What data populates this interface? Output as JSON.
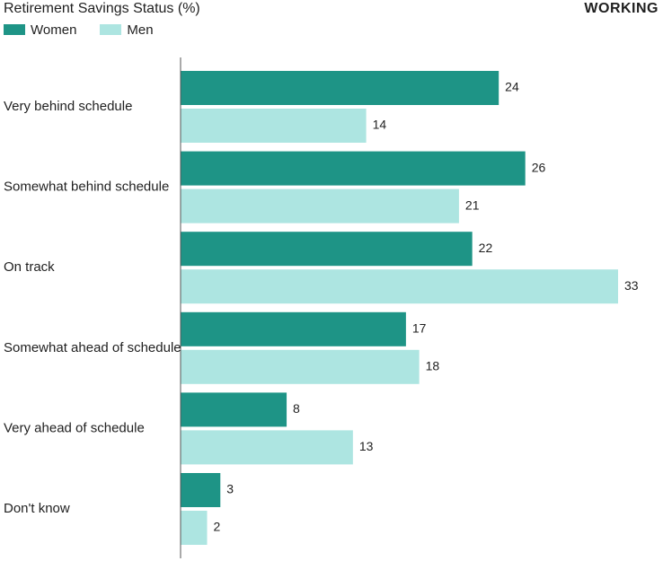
{
  "header": {
    "title": "Retirement Savings Status (%)",
    "tag": "WORKING"
  },
  "colors": {
    "women": "#1e9486",
    "men": "#ade5e1",
    "axis": "#555555",
    "text": "#1f1f1f"
  },
  "chart_data": {
    "type": "bar",
    "orientation": "horizontal",
    "title": "Retirement Savings Status (%)",
    "xlabel": "",
    "ylabel": "",
    "xlim": [
      0,
      33
    ],
    "grid": false,
    "legend_position": "top-left",
    "categories": [
      "Very behind schedule",
      "Somewhat behind schedule",
      "On track",
      "Somewhat ahead of schedule",
      "Very ahead of schedule",
      "Don't know"
    ],
    "series": [
      {
        "name": "Women",
        "values": [
          24,
          26,
          22,
          17,
          8,
          3
        ]
      },
      {
        "name": "Men",
        "values": [
          14,
          21,
          33,
          18,
          13,
          2
        ]
      }
    ]
  }
}
